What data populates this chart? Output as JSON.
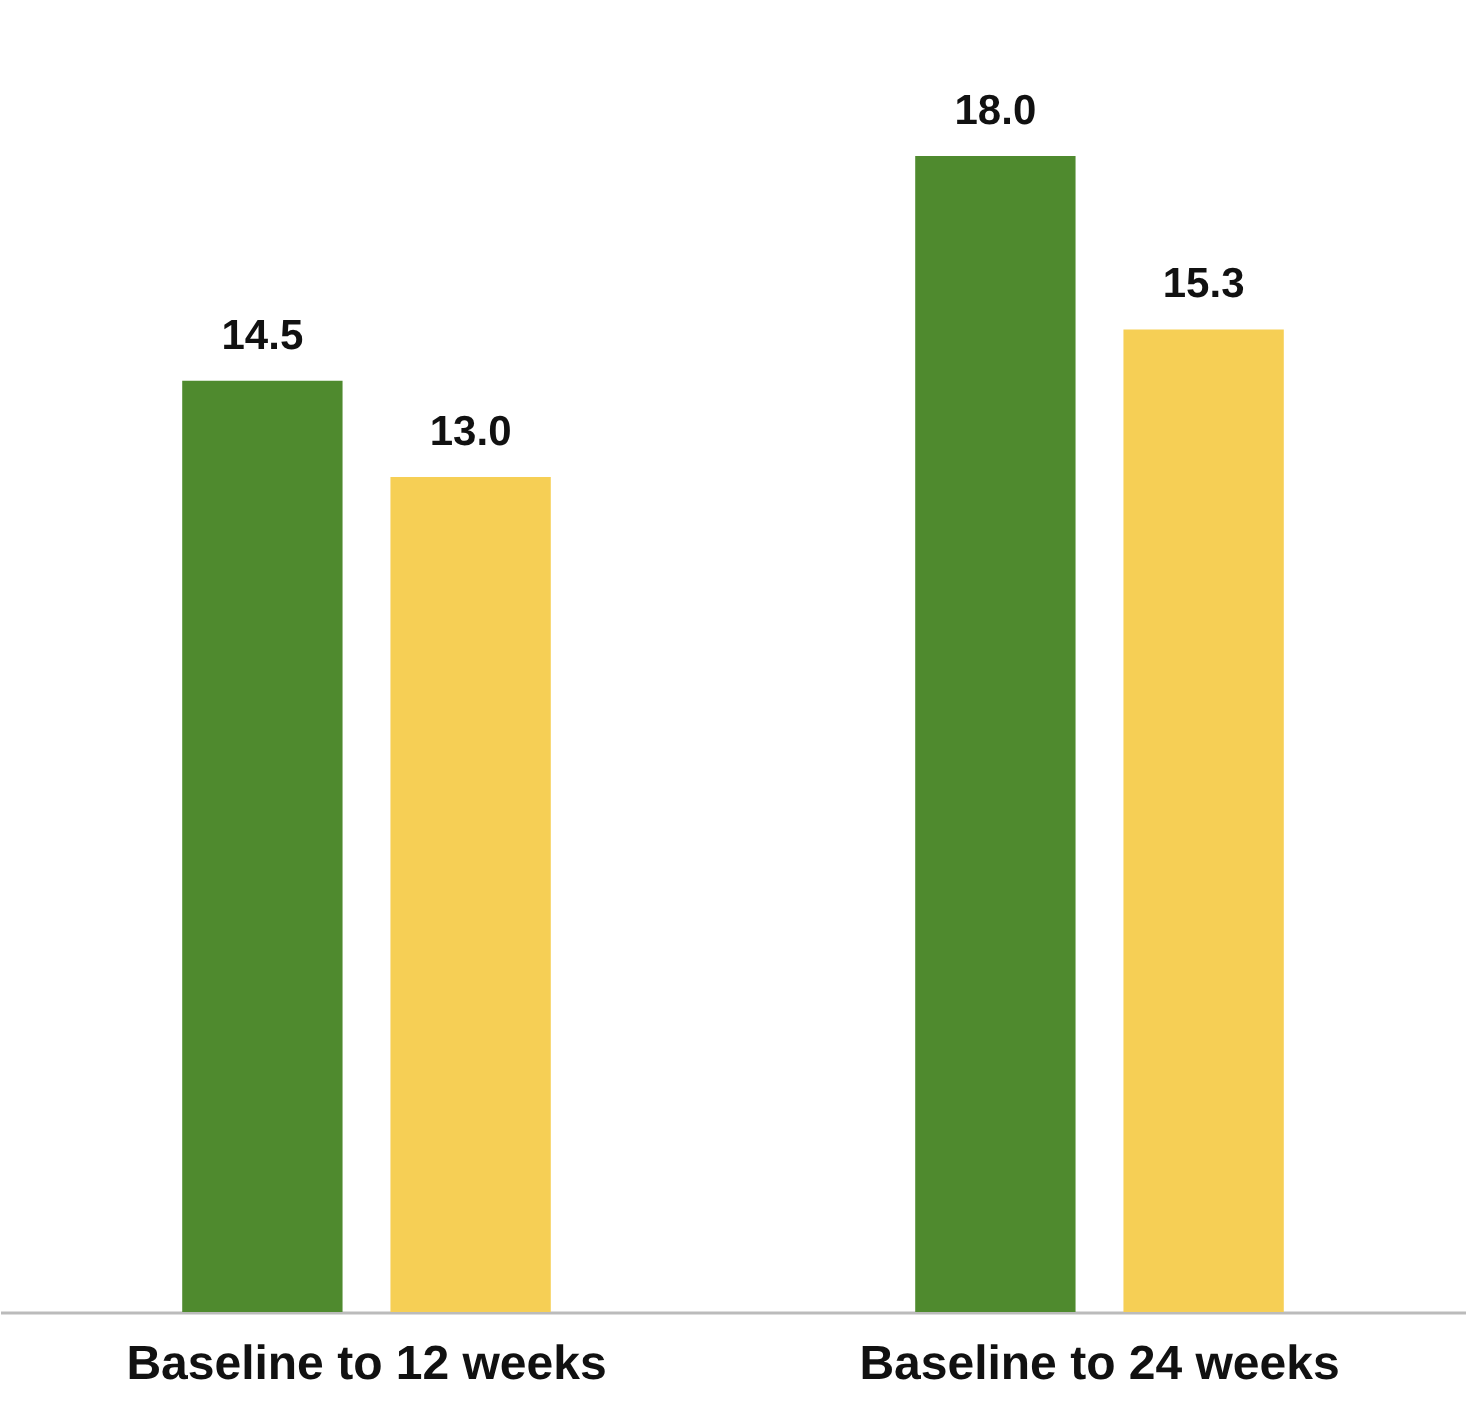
{
  "chart_data": {
    "type": "bar",
    "categories": [
      "Baseline to 12 weeks",
      "Baseline to 24 weeks"
    ],
    "series": [
      {
        "color": "#4f8a2e",
        "values": [
          14.5,
          18.0
        ],
        "value_labels": [
          "14.5",
          "18.0"
        ]
      },
      {
        "color": "#f6cf55",
        "values": [
          13.0,
          15.3
        ],
        "value_labels": [
          "13.0",
          "15.3"
        ]
      }
    ],
    "grid": false,
    "legend": false
  }
}
